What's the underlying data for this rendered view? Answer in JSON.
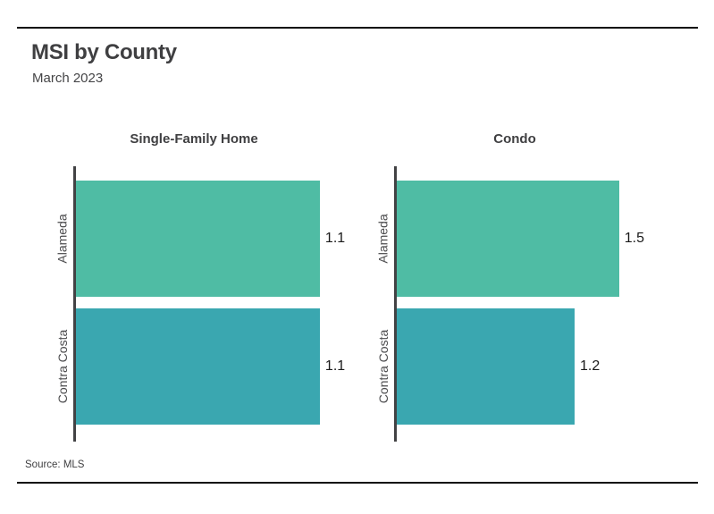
{
  "header": {
    "title": "MSI by County",
    "subtitle": "March 2023"
  },
  "footer": {
    "source": "Source: MLS"
  },
  "chart_data": {
    "type": "bar",
    "orientation": "horizontal",
    "title": "MSI by County",
    "subtitle": "March 2023",
    "source": "Source: MLS",
    "categories": [
      "Alameda",
      "Contra Costa"
    ],
    "series_colors": [
      "#4fbca4",
      "#3aa7b0"
    ],
    "axis_color": "#424244",
    "grid": false,
    "legend": "none",
    "value_label_position": "outside-end",
    "panels": [
      {
        "title": "Single-Family Home",
        "values": [
          1.1,
          1.1
        ],
        "labels": [
          "1.1",
          "1.1"
        ],
        "xlim": [
          0,
          1.33
        ]
      },
      {
        "title": "Condo",
        "values": [
          1.5,
          1.2
        ],
        "labels": [
          "1.5",
          "1.2"
        ],
        "xlim": [
          0,
          1.99
        ]
      }
    ]
  }
}
